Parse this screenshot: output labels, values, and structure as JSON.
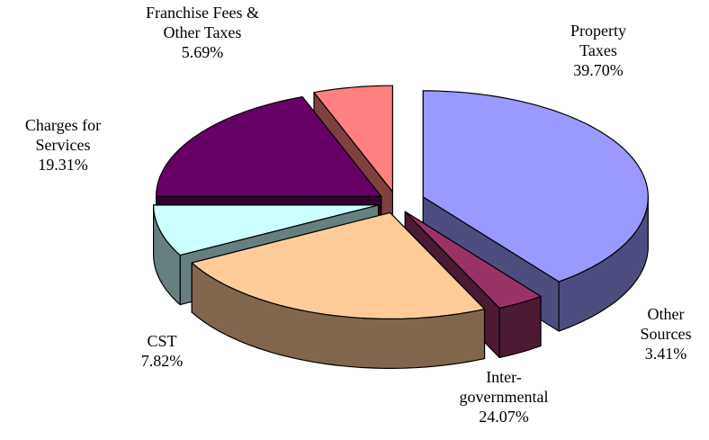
{
  "chart_data": {
    "type": "pie3d",
    "categories": [
      [
        "Property",
        "Taxes"
      ],
      [
        "Other",
        "Sources"
      ],
      [
        "Inter-",
        "governmental"
      ],
      [
        "CST"
      ],
      [
        "Charges for",
        "Services"
      ],
      [
        "Franchise Fees &",
        "Other Taxes"
      ]
    ],
    "values": [
      39.7,
      3.41,
      24.07,
      7.82,
      19.31,
      5.69
    ],
    "value_labels": [
      "39.70%",
      "3.41%",
      "24.07%",
      "7.82%",
      "19.31%",
      "5.69%"
    ],
    "colors": [
      "#9999ff",
      "#993366",
      "#ffcc99",
      "#ccffff",
      "#660066",
      "#ff8080"
    ]
  }
}
